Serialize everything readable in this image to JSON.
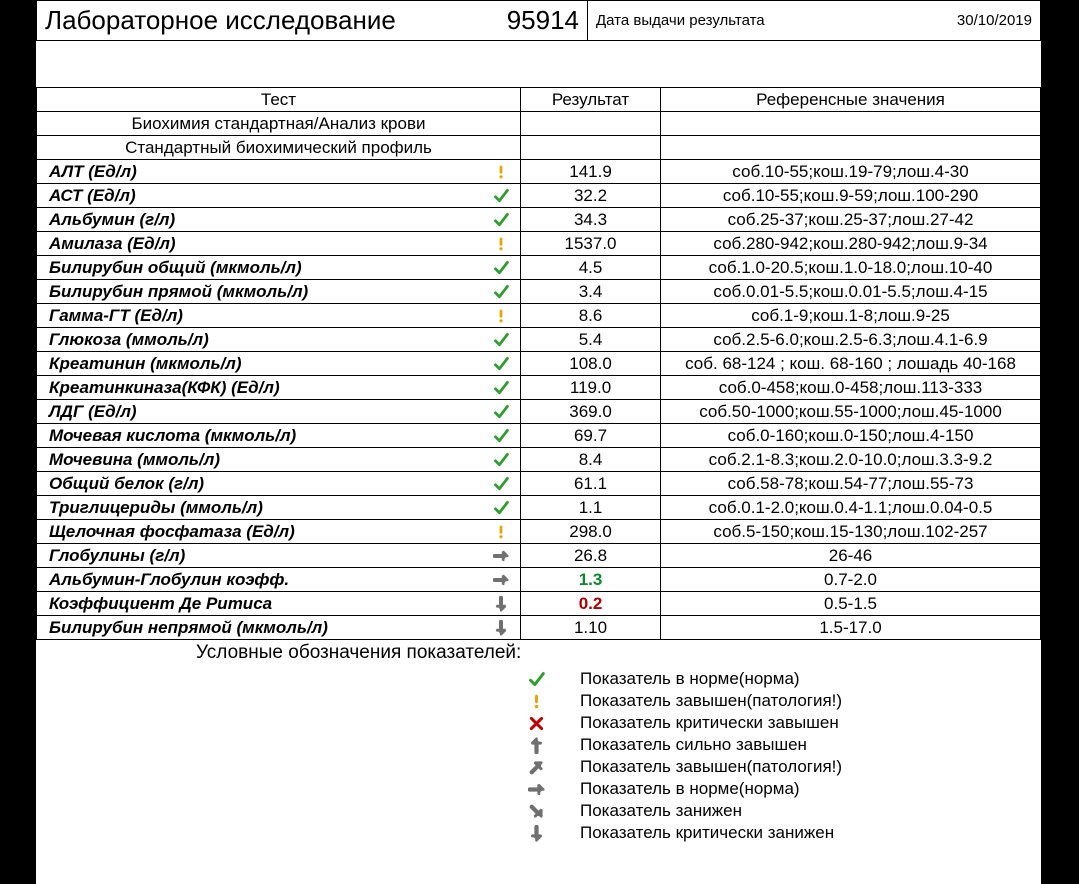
{
  "header": {
    "title": "Лабораторное исследование",
    "number": "95914",
    "date_label": "Дата выдачи результата",
    "date_value": "30/10/2019"
  },
  "columns": {
    "test": "Тест",
    "result": "Результат",
    "reference": "Референсные значения"
  },
  "sections": [
    "Биохимия стандартная/Анализ крови",
    "Стандартный биохимический профиль"
  ],
  "rows": [
    {
      "name": "АЛТ (Ед/л)",
      "icon": "warn",
      "value": "141.9",
      "ref": "соб.10-55;кош.19-79;лош.4-30"
    },
    {
      "name": "АСТ (Ед/л)",
      "icon": "ok",
      "value": "32.2",
      "ref": "соб.10-55;кош.9-59;лош.100-290"
    },
    {
      "name": "Альбумин (г/л)",
      "icon": "ok",
      "value": "34.3",
      "ref": "соб.25-37;кош.25-37;лош.27-42"
    },
    {
      "name": "Амилаза (Ед/л)",
      "icon": "warn",
      "value": "1537.0",
      "ref": "соб.280-942;кош.280-942;лош.9-34"
    },
    {
      "name": "Билирубин общий (мкмоль/л)",
      "icon": "ok",
      "value": "4.5",
      "ref": "соб.1.0-20.5;кош.1.0-18.0;лош.10-40"
    },
    {
      "name": "Билирубин прямой (мкмоль/л)",
      "icon": "ok",
      "value": "3.4",
      "ref": "соб.0.01-5.5;кош.0.01-5.5;лош.4-15"
    },
    {
      "name": "Гамма-ГТ (Ед/л)",
      "icon": "warn",
      "value": "8.6",
      "ref": "соб.1-9;кош.1-8;лош.9-25"
    },
    {
      "name": "Глюкоза (ммоль/л)",
      "icon": "ok",
      "value": "5.4",
      "ref": "соб.2.5-6.0;кош.2.5-6.3;лош.4.1-6.9"
    },
    {
      "name": "Креатинин (мкмоль/л)",
      "icon": "ok",
      "value": "108.0",
      "ref": "соб. 68-124 ; кош. 68-160 ; лошадь 40-168"
    },
    {
      "name": "Креатинкиназа(КФК) (Ед/л)",
      "icon": "ok",
      "value": "119.0",
      "ref": "соб.0-458;кош.0-458;лош.113-333"
    },
    {
      "name": "ЛДГ (Ед/л)",
      "icon": "ok",
      "value": "369.0",
      "ref": "соб.50-1000;кош.55-1000;лош.45-1000"
    },
    {
      "name": "Мочевая кислота (мкмоль/л)",
      "icon": "ok",
      "value": "69.7",
      "ref": "соб.0-160;кош.0-150;лош.4-150"
    },
    {
      "name": "Мочевина (ммоль/л)",
      "icon": "ok",
      "value": "8.4",
      "ref": "соб.2.1-8.3;кош.2.0-10.0;лош.3.3-9.2"
    },
    {
      "name": "Общий белок (г/л)",
      "icon": "ok",
      "value": "61.1",
      "ref": "соб.58-78;кош.54-77;лош.55-73"
    },
    {
      "name": "Триглицериды (ммоль/л)",
      "icon": "ok",
      "value": "1.1",
      "ref": "соб.0.1-2.0;кош.0.4-1.1;лош.0.04-0.5"
    },
    {
      "name": "Щелочная фосфатаза (Ед/л)",
      "icon": "warn",
      "value": "298.0",
      "ref": "соб.5-150;кош.15-130;лош.102-257"
    },
    {
      "name": "Глобулины (г/л)",
      "icon": "flat",
      "value": "26.8",
      "ref": "26-46"
    },
    {
      "name": "Альбумин-Глобулин коэфф.",
      "icon": "flat",
      "value": "1.3",
      "value_style": "bold-green",
      "ref": "0.7-2.0"
    },
    {
      "name": "Коэффициент Де Ритиса",
      "icon": "down",
      "value": "0.2",
      "value_style": "bold-red",
      "ref": "0.5-1.5"
    },
    {
      "name": "Билирубин непрямой (мкмоль/л)",
      "icon": "down",
      "value": "1.10",
      "ref": "1.5-17.0"
    }
  ],
  "legend": {
    "title": "Условные обозначения показателей:",
    "items": [
      {
        "icon": "ok",
        "text": "Показатель в норме(норма)"
      },
      {
        "icon": "warn",
        "text": "Показатель завышен(патология!)"
      },
      {
        "icon": "cross",
        "text": "Показатель критически завышен"
      },
      {
        "icon": "up",
        "text": "Показатель сильно завышен"
      },
      {
        "icon": "upr",
        "text": "Показатель завышен(патология!)"
      },
      {
        "icon": "flat",
        "text": "Показатель в норме(норма)"
      },
      {
        "icon": "downr",
        "text": "Показатель занижен"
      },
      {
        "icon": "down",
        "text": "Показатель критически занижен"
      }
    ]
  },
  "icons": {
    "ok": {
      "type": "check",
      "stroke": "#2e9e2e"
    },
    "warn": {
      "type": "exclaim",
      "fill": "#e6a400"
    },
    "cross": {
      "type": "cross",
      "stroke": "#c00000"
    },
    "up": {
      "type": "arrow",
      "angle": -90,
      "fill": "#707070"
    },
    "upr": {
      "type": "arrow",
      "angle": -45,
      "fill": "#707070"
    },
    "flat": {
      "type": "arrow",
      "angle": 0,
      "fill": "#707070"
    },
    "downr": {
      "type": "arrow",
      "angle": 45,
      "fill": "#707070"
    },
    "down": {
      "type": "arrow",
      "angle": 90,
      "fill": "#707070"
    }
  }
}
